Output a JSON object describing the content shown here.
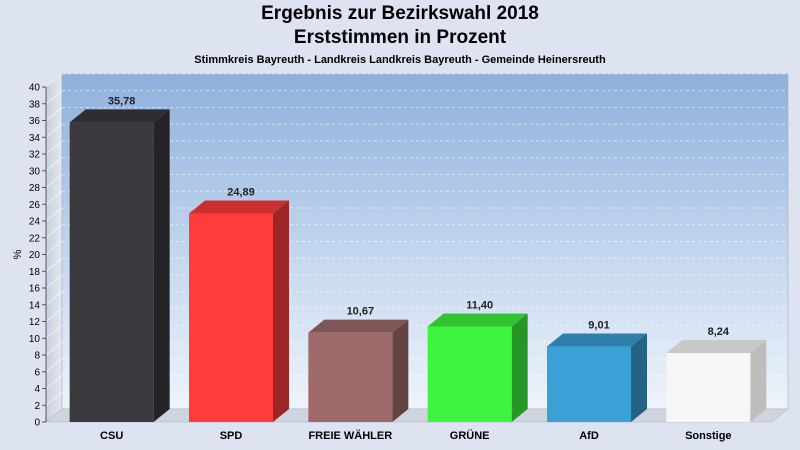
{
  "chart_data": {
    "type": "bar",
    "title": "Ergebnis zur Bezirkswahl 2018",
    "subtitle": "Erststimmen in Prozent",
    "caption": "Stimmkreis Bayreuth - Landkreis Landkreis Bayreuth - Gemeinde Heinersreuth",
    "ylabel": "%",
    "ylim": [
      0,
      40
    ],
    "ytick_step": 2,
    "categories": [
      "CSU",
      "SPD",
      "FREIE WÄHLER",
      "GRÜNE",
      "AfD",
      "Sonstige"
    ],
    "values": [
      35.78,
      24.89,
      10.67,
      11.4,
      9.01,
      8.24
    ],
    "value_labels": [
      "35,78",
      "24,89",
      "10,67",
      "11,40",
      "9,01",
      "8,24"
    ],
    "colors": [
      "#3a3a3e",
      "#ff3b3b",
      "#a06a6a",
      "#3ef43e",
      "#3aa0d6",
      "#f6f6f8"
    ],
    "grid": true
  }
}
